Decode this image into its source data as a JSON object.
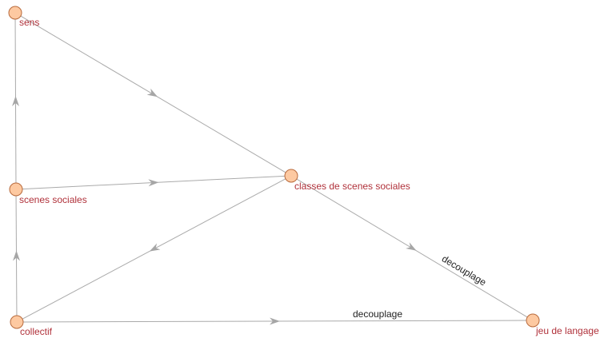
{
  "graph": {
    "nodes": [
      {
        "id": "sens",
        "label": "sens"
      },
      {
        "id": "scenes-sociales",
        "label": "scenes sociales"
      },
      {
        "id": "collectif",
        "label": "collectif"
      },
      {
        "id": "classes",
        "label": "classes de scenes sociales"
      },
      {
        "id": "jeu",
        "label": "jeu de langage"
      }
    ],
    "edges": [
      {
        "from": "sens",
        "to": "classes",
        "label": ""
      },
      {
        "from": "scenes-sociales",
        "to": "sens",
        "label": ""
      },
      {
        "from": "scenes-sociales",
        "to": "classes",
        "label": ""
      },
      {
        "from": "collectif",
        "to": "scenes-sociales",
        "label": ""
      },
      {
        "from": "classes",
        "to": "collectif",
        "label": ""
      },
      {
        "from": "classes",
        "to": "jeu",
        "label": "decouplage"
      },
      {
        "from": "collectif",
        "to": "jeu",
        "label": "decouplage"
      }
    ],
    "colors": {
      "node_fill": "#fdc9a1",
      "node_stroke": "#b86a3c",
      "node_label": "#b0313a",
      "edge": "#aaaaaa",
      "edge_label": "#222222"
    }
  }
}
